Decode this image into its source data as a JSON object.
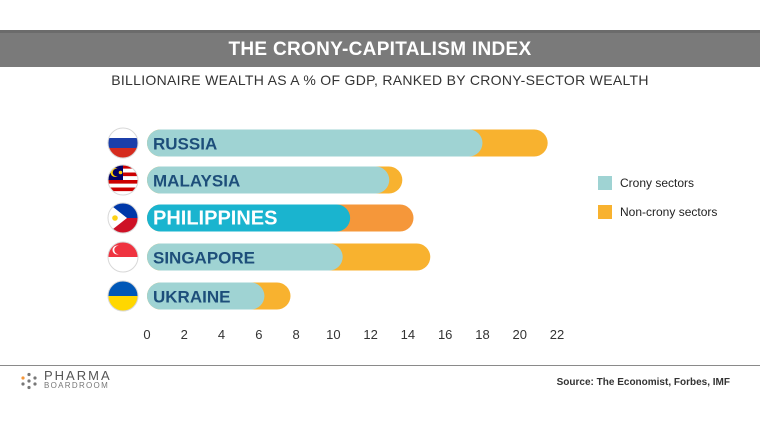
{
  "header": {
    "title": "THE CRONY-CAPITALISM INDEX",
    "subtitle": "BILLIONAIRE WEALTH AS A % OF GDP, RANKED BY CRONY-SECTOR WEALTH"
  },
  "legend": {
    "crony_label": "Crony sectors",
    "noncrony_label": "Non-crony sectors"
  },
  "footer": {
    "logo_main": "PHARMA",
    "logo_sub": "BOARDROOM",
    "source": "Source: The Economist, Forbes, IMF"
  },
  "colors": {
    "crony": "#9fd3d3",
    "noncrony": "#f8b22f",
    "highlight_crony": "#1ab4cf",
    "highlight_noncrony": "#f5973a",
    "label": "#1d4e7a",
    "label_highlight": "#ffffff"
  },
  "chart_data": {
    "type": "bar",
    "orientation": "horizontal",
    "stacked": true,
    "categories": [
      "RUSSIA",
      "MALAYSIA",
      "PHILIPPINES",
      "SINGAPORE",
      "UKRAINE"
    ],
    "series": [
      {
        "name": "Crony sectors",
        "values": [
          18.0,
          13.0,
          10.9,
          10.5,
          6.3
        ]
      },
      {
        "name": "Non-crony sectors",
        "values": [
          3.5,
          0.7,
          3.4,
          4.7,
          1.4
        ]
      }
    ],
    "highlight_category": "PHILIPPINES",
    "xlim": [
      0,
      22
    ],
    "xticks": [
      0,
      2,
      4,
      6,
      8,
      10,
      12,
      14,
      16,
      18,
      20,
      22
    ],
    "flags": [
      "russia-flag-icon",
      "malaysia-flag-icon",
      "philippines-flag-icon",
      "singapore-flag-icon",
      "ukraine-flag-icon"
    ],
    "legend_position": "right",
    "grid": false
  }
}
